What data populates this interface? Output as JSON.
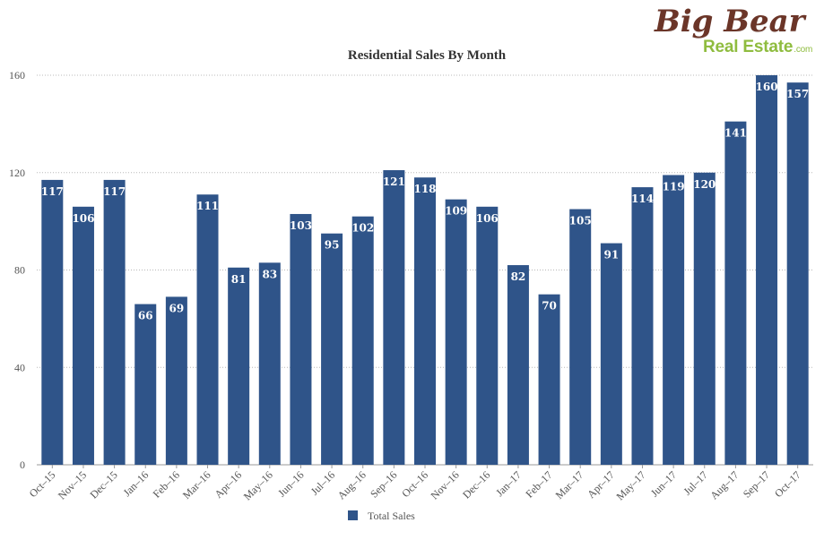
{
  "logo": {
    "script_text": "Big Bear",
    "sub_text": "Real Estate",
    "dotcom": ".com"
  },
  "chart_data": {
    "type": "bar",
    "title": "Residential Sales By Month",
    "xlabel": "",
    "ylabel": "",
    "ylim": [
      0,
      160
    ],
    "yticks": [
      0,
      40,
      80,
      120,
      160
    ],
    "grid": true,
    "legend_position": "bottom",
    "bar_color": "#2f5489",
    "categories": [
      "Oct–15",
      "Nov–15",
      "Dec–15",
      "Jan–16",
      "Feb–16",
      "Mar–16",
      "Apr–16",
      "May–16",
      "Jun–16",
      "Jul–16",
      "Aug–16",
      "Sep–16",
      "Oct–16",
      "Nov–16",
      "Dec–16",
      "Jan–17",
      "Feb–17",
      "Mar–17",
      "Apr–17",
      "May–17",
      "Jun–17",
      "Jul–17",
      "Aug–17",
      "Sep–17",
      "Oct–17"
    ],
    "series": [
      {
        "name": "Total Sales",
        "values": [
          117,
          106,
          117,
          66,
          69,
          111,
          81,
          83,
          103,
          95,
          102,
          121,
          118,
          109,
          106,
          82,
          70,
          105,
          91,
          114,
          119,
          120,
          141,
          160,
          157
        ]
      }
    ]
  }
}
